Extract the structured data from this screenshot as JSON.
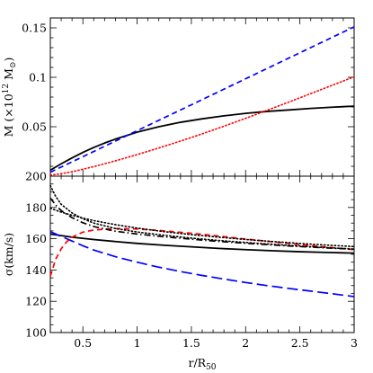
{
  "chart_data": [
    {
      "type": "line",
      "panel": "top",
      "ylabel_main": "M (×10",
      "ylabel_exp": "12",
      "ylabel_unit": " M",
      "ylabel_sub": "⊙",
      "ylabel_close": ")",
      "xlim": [
        0.2,
        3.0
      ],
      "ylim": [
        0.0,
        0.16
      ],
      "x_ticks": [
        0.5,
        1,
        1.5,
        2,
        2.5,
        3
      ],
      "x_minor_step": 0.1,
      "y_ticks": [
        0.05,
        0.1,
        0.15
      ],
      "y_tick_labels": [
        "0.05",
        "0.1",
        "0.15"
      ],
      "y_minor_step": 0.01,
      "series": [
        {
          "style": "solid",
          "color": "#000000",
          "x": [
            0.2,
            0.3,
            0.4,
            0.5,
            0.6,
            0.7,
            0.8,
            1.0,
            1.2,
            1.4,
            1.6,
            1.8,
            2.0,
            2.2,
            2.4,
            2.6,
            2.8,
            3.0
          ],
          "y": [
            0.006,
            0.0125,
            0.0185,
            0.024,
            0.029,
            0.0335,
            0.0375,
            0.0445,
            0.05,
            0.0545,
            0.058,
            0.061,
            0.0635,
            0.0655,
            0.067,
            0.0685,
            0.0698,
            0.0708
          ]
        },
        {
          "style": "dashed",
          "color": "#0000ff",
          "x": [
            0.2,
            0.5,
            1.0,
            1.5,
            2.0,
            2.5,
            3.0
          ],
          "y": [
            0.004,
            0.0197,
            0.046,
            0.0722,
            0.0985,
            0.1248,
            0.151
          ]
        },
        {
          "style": "dotted",
          "color": "#ff0000",
          "x": [
            0.2,
            0.3,
            0.4,
            0.5,
            0.6,
            0.8,
            1.0,
            1.2,
            1.4,
            1.6,
            1.8,
            2.0,
            2.2,
            2.4,
            2.6,
            2.8,
            3.0
          ],
          "y": [
            0.001,
            0.0025,
            0.0045,
            0.007,
            0.0097,
            0.0155,
            0.0218,
            0.0285,
            0.0355,
            0.0428,
            0.0505,
            0.0585,
            0.0667,
            0.075,
            0.0835,
            0.092,
            0.1005
          ]
        }
      ]
    },
    {
      "type": "line",
      "panel": "bottom",
      "xlabel_main": "r/R",
      "xlabel_sub": "50",
      "ylabel": "σ(km/s)",
      "xlim": [
        0.2,
        3.0
      ],
      "ylim": [
        100,
        200
      ],
      "x_ticks": [
        0.5,
        1,
        1.5,
        2,
        2.5,
        3
      ],
      "x_tick_labels": [
        "0.5",
        "1",
        "1.5",
        "2",
        "2.5",
        "3"
      ],
      "x_minor_step": 0.1,
      "y_ticks": [
        100,
        120,
        140,
        160,
        180,
        200
      ],
      "y_tick_labels": [
        "100",
        "120",
        "140",
        "160",
        "180",
        "200"
      ],
      "y_minor_step": 5,
      "series": [
        {
          "style": "solid",
          "color": "#000000",
          "x": [
            0.2,
            0.4,
            0.6,
            0.8,
            1.0,
            1.25,
            1.5,
            1.75,
            2.0,
            2.25,
            2.5,
            2.75,
            3.0
          ],
          "y": [
            163,
            161,
            159.5,
            158.2,
            157,
            155.8,
            154.8,
            153.8,
            153,
            152.3,
            151.7,
            151.2,
            150.8
          ]
        },
        {
          "style": "long-dashed",
          "color": "#0000ff",
          "x": [
            0.2,
            0.3,
            0.4,
            0.5,
            0.6,
            0.8,
            1.0,
            1.2,
            1.4,
            1.6,
            1.8,
            2.0,
            2.2,
            2.4,
            2.6,
            2.8,
            3.0
          ],
          "y": [
            164.5,
            161.5,
            158.5,
            155.5,
            152.8,
            148.5,
            145,
            141.8,
            139,
            136.5,
            134.2,
            132,
            130,
            128.2,
            126.5,
            124.8,
            123
          ]
        },
        {
          "style": "dashed",
          "color": "#ff0000",
          "x": [
            0.2,
            0.25,
            0.3,
            0.35,
            0.4,
            0.5,
            0.6,
            0.8,
            1.0,
            1.2,
            1.5,
            1.75,
            2.0,
            2.25,
            2.5,
            2.75,
            3.0
          ],
          "y": [
            136,
            147,
            153.5,
            158,
            161,
            164.2,
            165.6,
            166.5,
            166.2,
            165.3,
            163.5,
            161.7,
            159.8,
            158,
            156.3,
            154.6,
            153
          ]
        },
        {
          "style": "dotted",
          "color": "#000000",
          "x": [
            0.2,
            0.3,
            0.4,
            0.5,
            0.6,
            0.8,
            1.0,
            1.25,
            1.5,
            1.75,
            2.0,
            2.25,
            2.5,
            2.75,
            3.0
          ],
          "y": [
            179.5,
            177,
            175,
            173.2,
            171.6,
            169,
            166.8,
            164.5,
            162.6,
            161,
            159.5,
            158.2,
            157,
            155.9,
            155
          ]
        },
        {
          "style": "dotted",
          "color": "#000000",
          "x": [
            0.2,
            0.25,
            0.3,
            0.4,
            0.5,
            0.6,
            0.8,
            1.0,
            1.25,
            1.5,
            1.75,
            2.0,
            2.25,
            2.5,
            2.75,
            3.0
          ],
          "y": [
            194,
            187,
            182,
            176.5,
            172.8,
            170,
            166.5,
            164.3,
            162.2,
            160.4,
            158.9,
            157.6,
            156.4,
            155.3,
            154.3,
            153.4
          ]
        },
        {
          "style": "dash-dot",
          "color": "#000000",
          "x": [
            0.2,
            0.25,
            0.3,
            0.4,
            0.5,
            0.6,
            0.8,
            1.0,
            1.25,
            1.5,
            1.75,
            2.0,
            2.25,
            2.5,
            2.75,
            3.0
          ],
          "y": [
            186,
            181.5,
            178,
            173.5,
            170.2,
            167.8,
            164.8,
            163,
            161.2,
            159.7,
            158.3,
            157.1,
            156,
            155,
            154.1,
            153.3
          ]
        }
      ]
    }
  ]
}
